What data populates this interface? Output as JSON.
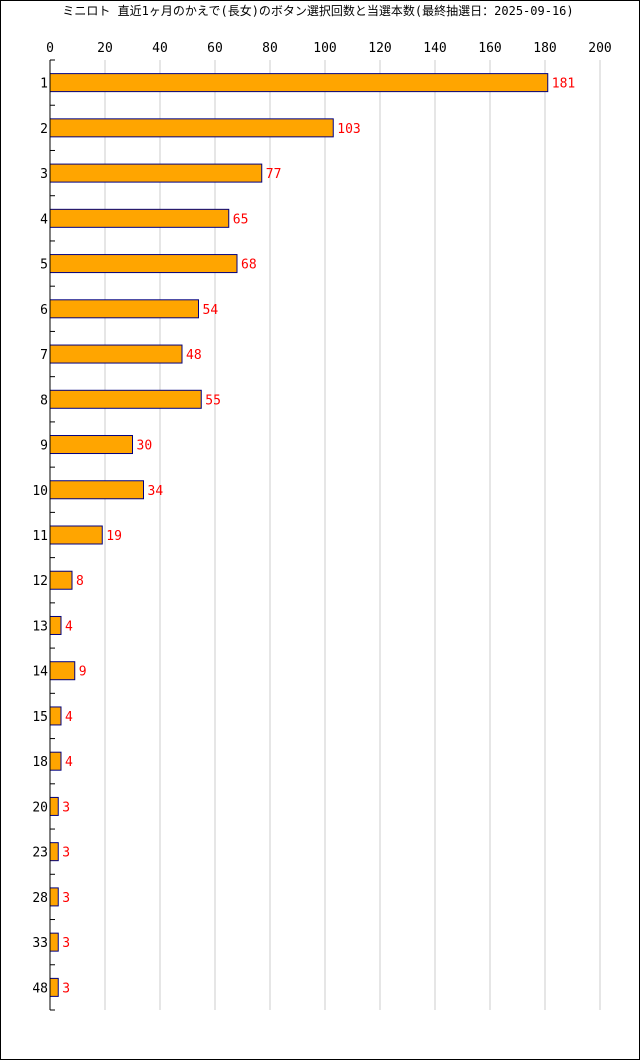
{
  "chart_data": {
    "type": "bar",
    "orientation": "horizontal",
    "title": "ミニロト 直近1ヶ月のかえで(長女)のボタン選択回数と当選本数(最終抽選日：2025-09-16)",
    "xlabel": "",
    "ylabel": "",
    "xlim": [
      0,
      200
    ],
    "xticks": [
      0,
      20,
      40,
      60,
      80,
      100,
      120,
      140,
      160,
      180,
      200
    ],
    "grid": true,
    "categories": [
      "1",
      "2",
      "3",
      "4",
      "5",
      "6",
      "7",
      "8",
      "9",
      "10",
      "11",
      "12",
      "13",
      "14",
      "15",
      "18",
      "20",
      "23",
      "28",
      "33",
      "48"
    ],
    "values": [
      181,
      103,
      77,
      65,
      68,
      54,
      48,
      55,
      30,
      34,
      19,
      8,
      4,
      9,
      4,
      4,
      3,
      3,
      3,
      3,
      3
    ],
    "colors": {
      "bar_fill": "#FFA500",
      "bar_stroke": "#000080",
      "value_label": "#FF0000",
      "grid": "#CCCCCC",
      "axis": "#000000"
    }
  }
}
